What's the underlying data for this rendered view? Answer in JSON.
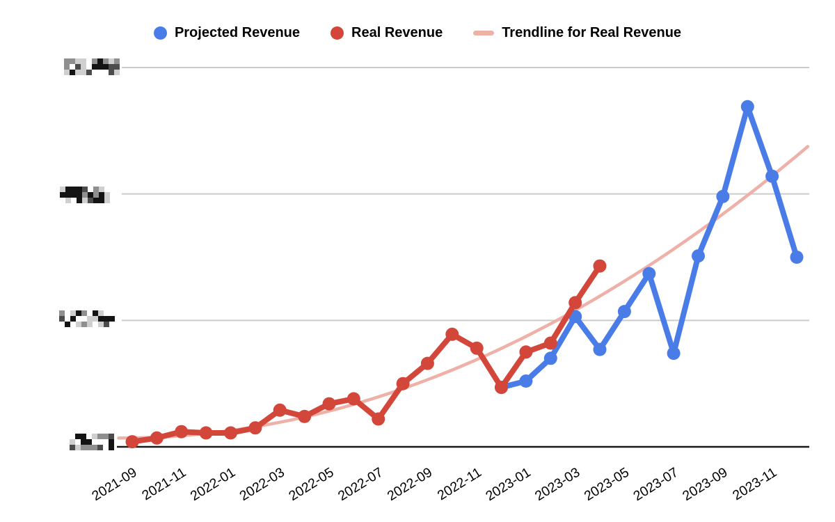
{
  "window": {
    "background": "#ffffff"
  },
  "legend": {
    "position": "top-center",
    "items": [
      {
        "label": "Projected Revenue",
        "color": "#4A7CE8",
        "marker": "circle"
      },
      {
        "label": "Real Revenue",
        "color": "#D2473A",
        "marker": "circle"
      },
      {
        "label": "Trendline for Real Revenue",
        "color": "#EFB0A8",
        "marker": "line"
      }
    ]
  },
  "axes": {
    "x": {
      "tick_labels": [
        "2021-09",
        "2021-11",
        "2022-01",
        "2022-03",
        "2022-05",
        "2022-07",
        "2022-09",
        "2022-11",
        "2023-01",
        "2023-03",
        "2023-05",
        "2023-07",
        "2023-09",
        "2023-11"
      ],
      "label_rotation_deg": -32,
      "tick_text_color": "#000000"
    },
    "y": {
      "tick_labels_redacted": true,
      "redacted_label_count": 4,
      "note": "y-axis value labels are pixelated/censored in the source image"
    }
  },
  "colors": {
    "gridline": "#CBCBCB",
    "axis_line": "#1A1A1A",
    "projected": "#4A7CE8",
    "real": "#D2473A",
    "trendline": "#EFB0A8"
  },
  "chart_data": {
    "type": "line",
    "title": "",
    "xlabel": "",
    "ylabel": "",
    "x": [
      "2021-09",
      "2021-10",
      "2021-11",
      "2021-12",
      "2022-01",
      "2022-02",
      "2022-03",
      "2022-04",
      "2022-05",
      "2022-06",
      "2022-07",
      "2022-08",
      "2022-09",
      "2022-10",
      "2022-11",
      "2022-12",
      "2023-01",
      "2023-02",
      "2023-03",
      "2023-04",
      "2023-05",
      "2023-06",
      "2023-07",
      "2023-08",
      "2023-09",
      "2023-10",
      "2023-11",
      "2023-12"
    ],
    "x_tick_labels": [
      "2021-09",
      "2021-11",
      "2022-01",
      "2022-03",
      "2022-05",
      "2022-07",
      "2022-09",
      "2022-11",
      "2023-01",
      "2023-03",
      "2023-05",
      "2023-07",
      "2023-09",
      "2023-11"
    ],
    "ylim": [
      0,
      300
    ],
    "units": "relative scale (y-axis labels censored; gridlines at 100/200/300)",
    "grid": "horizontal gridlines at 100, 200, 300; black baseline at 0",
    "legend_position": "top",
    "series": [
      {
        "name": "Real Revenue",
        "color": "#D2473A",
        "start_index": 0,
        "values": [
          4,
          7,
          12,
          11,
          11,
          15,
          29,
          24,
          34,
          38,
          22,
          50,
          66,
          89,
          78,
          47,
          75,
          82,
          114,
          143
        ]
      },
      {
        "name": "Projected Revenue",
        "color": "#4A7CE8",
        "start_index": 15,
        "values": [
          47,
          52,
          70,
          103,
          77,
          107,
          137,
          74,
          151,
          198,
          269,
          214,
          150
        ]
      }
    ],
    "trendline": {
      "name": "Trendline for Real Revenue",
      "basis": "Real Revenue",
      "color": "#EFB0A8",
      "quadratic": {
        "a": 7,
        "b": 0.3,
        "c": 0.295
      },
      "i_start": -0.55,
      "i_end": 27.45,
      "sampled_values_every_2_months": [
        7,
        9,
        13,
        19,
        28,
        40,
        53,
        69,
        87,
        108,
        131,
        156,
        184,
        214,
        237
      ]
    }
  },
  "redacted_labels": [
    {
      "name": "y-label-300",
      "cols": 10,
      "rows": 3,
      "seed": 11
    },
    {
      "name": "y-label-200",
      "cols": 9,
      "rows": 3,
      "seed": 22
    },
    {
      "name": "y-label-100",
      "cols": 10,
      "rows": 3,
      "seed": 33
    },
    {
      "name": "y-label-0",
      "cols": 8,
      "rows": 3,
      "seed": 44
    }
  ]
}
